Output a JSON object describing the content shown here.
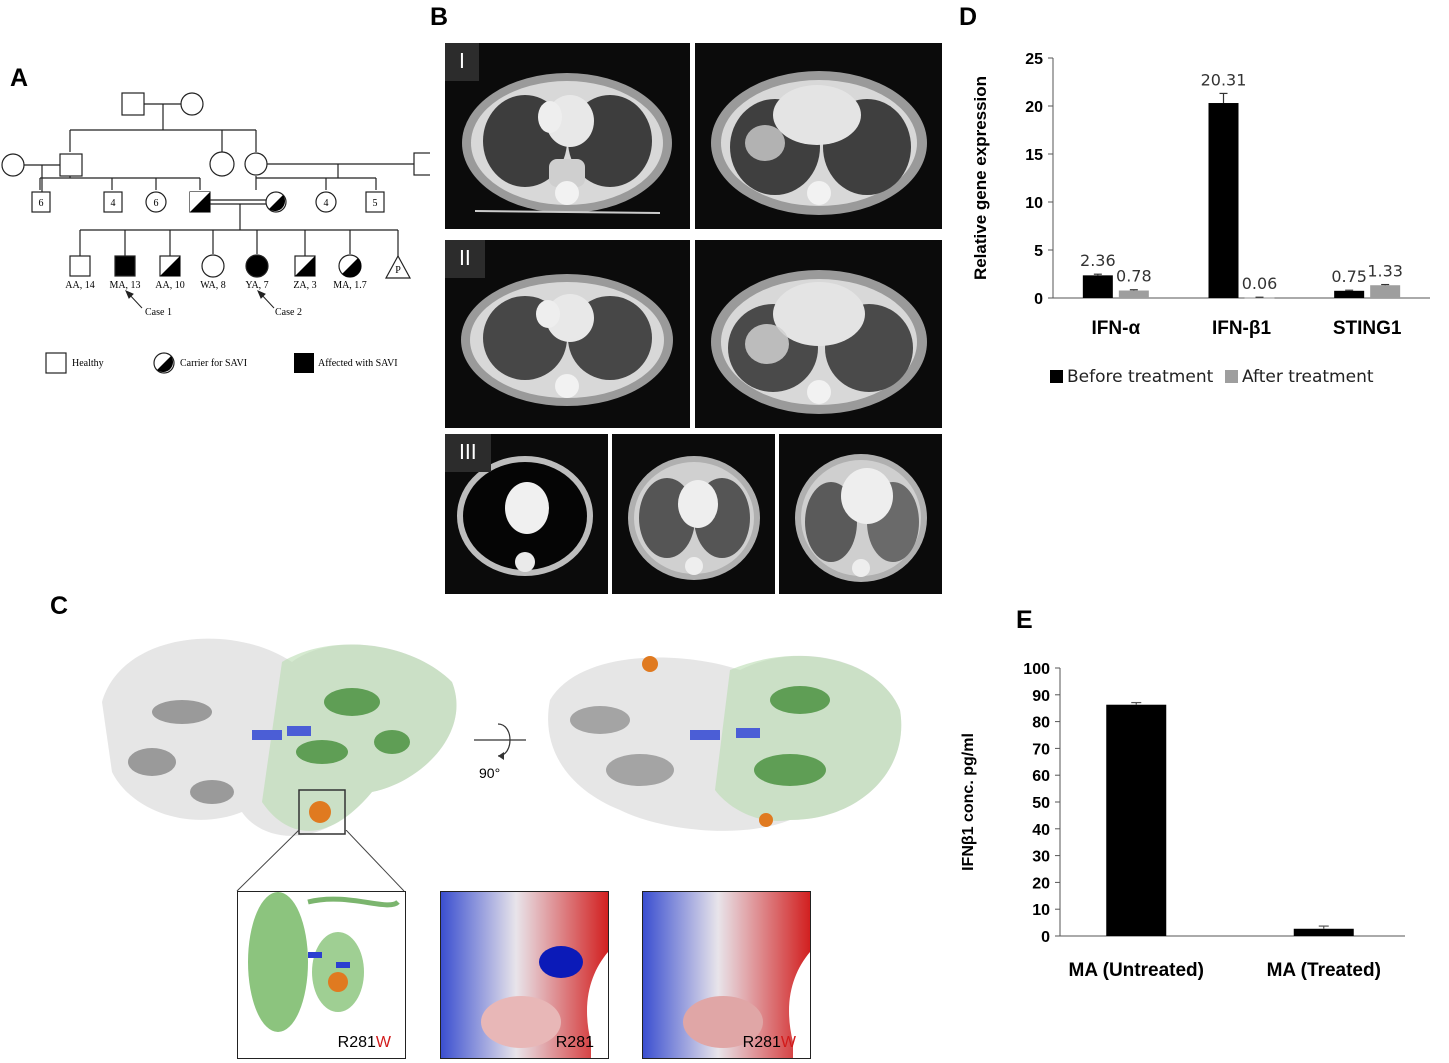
{
  "panel_labels": {
    "a": "A",
    "b": "B",
    "c": "C",
    "d": "D",
    "e": "E"
  },
  "pedigree": {
    "gen2_numbers": [
      "6",
      "4",
      "6",
      "4",
      "5"
    ],
    "children": [
      "AA, 14",
      "MA, 13",
      "AA, 10",
      "WA, 8",
      "YA, 7",
      "ZA, 3",
      "MA, 1.7"
    ],
    "pregnancy_symbol": "P",
    "case1": "Case 1",
    "case2": "Case 2",
    "legend": {
      "healthy": "Healthy",
      "carrier": "Carrier for SAVI",
      "affected": "Affected with SAVI"
    }
  },
  "ct": {
    "row_labels": [
      "I",
      "II",
      "III"
    ]
  },
  "structure": {
    "rotation_label": "90°",
    "zoom_labels": [
      {
        "base": "R281",
        "suffix": "W"
      },
      {
        "base": "R281",
        "suffix": ""
      },
      {
        "base": "R281",
        "suffix": "W"
      }
    ]
  },
  "chart_data": [
    {
      "type": "bar",
      "panel": "D",
      "categories": [
        "IFN-α",
        "IFN-β1",
        "STING1"
      ],
      "series": [
        {
          "name": "Before treatment",
          "values": [
            2.36,
            20.31,
            0.75
          ],
          "errors": [
            0.12,
            1.0,
            0.06
          ],
          "color": "#000000"
        },
        {
          "name": "After treatment",
          "values": [
            0.78,
            0.06,
            1.33
          ],
          "errors": [
            0.08,
            0.02,
            0.07
          ],
          "color": "#9e9e9e"
        }
      ],
      "data_labels": [
        [
          "2.36",
          "20.31",
          "0.75"
        ],
        [
          "0.78",
          "0.06",
          "1.33"
        ]
      ],
      "ylabel": "Relative gene expression",
      "ylim": [
        0,
        25
      ],
      "yticks": [
        0,
        5,
        10,
        15,
        20,
        25
      ],
      "legend_position": "bottom"
    },
    {
      "type": "bar",
      "panel": "E",
      "categories": [
        "MA (Untreated)",
        "MA (Treated)"
      ],
      "values": [
        86.3,
        2.7
      ],
      "errors": [
        0.8,
        1.0
      ],
      "color": "#000000",
      "ylabel": "IFNβ1 conc. pg/ml",
      "ylim": [
        0,
        100
      ],
      "yticks": [
        0,
        10,
        20,
        30,
        40,
        50,
        60,
        70,
        80,
        90,
        100
      ]
    }
  ]
}
